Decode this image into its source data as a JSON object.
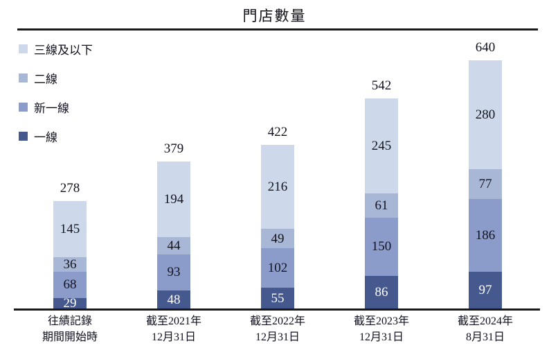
{
  "title": "門店數量",
  "chart_data": {
    "type": "bar",
    "stacked": true,
    "title": "門店數量",
    "grid": false,
    "legend_position": "top-left",
    "ylim": [
      0,
      660
    ],
    "categories": [
      [
        "往績記錄",
        "期間開始時"
      ],
      [
        "截至2021年",
        "12月31日"
      ],
      [
        "截至2022年",
        "12月31日"
      ],
      [
        "截至2023年",
        "12月31日"
      ],
      [
        "截至2024年",
        "8月31日"
      ]
    ],
    "series": [
      {
        "name": "一線",
        "color": "#46598e",
        "label_color": "#ffffff",
        "values": [
          29,
          48,
          55,
          86,
          97
        ]
      },
      {
        "name": "新一線",
        "color": "#8b9bca",
        "label_color": "#14141f",
        "values": [
          68,
          93,
          102,
          150,
          186
        ]
      },
      {
        "name": "二線",
        "color": "#a9b7d6",
        "label_color": "#14141f",
        "values": [
          36,
          44,
          49,
          61,
          77
        ]
      },
      {
        "name": "三線及以下",
        "color": "#cdd9ea",
        "label_color": "#14141f",
        "values": [
          145,
          194,
          216,
          245,
          280
        ]
      }
    ],
    "totals": [
      278,
      379,
      422,
      542,
      640
    ]
  }
}
